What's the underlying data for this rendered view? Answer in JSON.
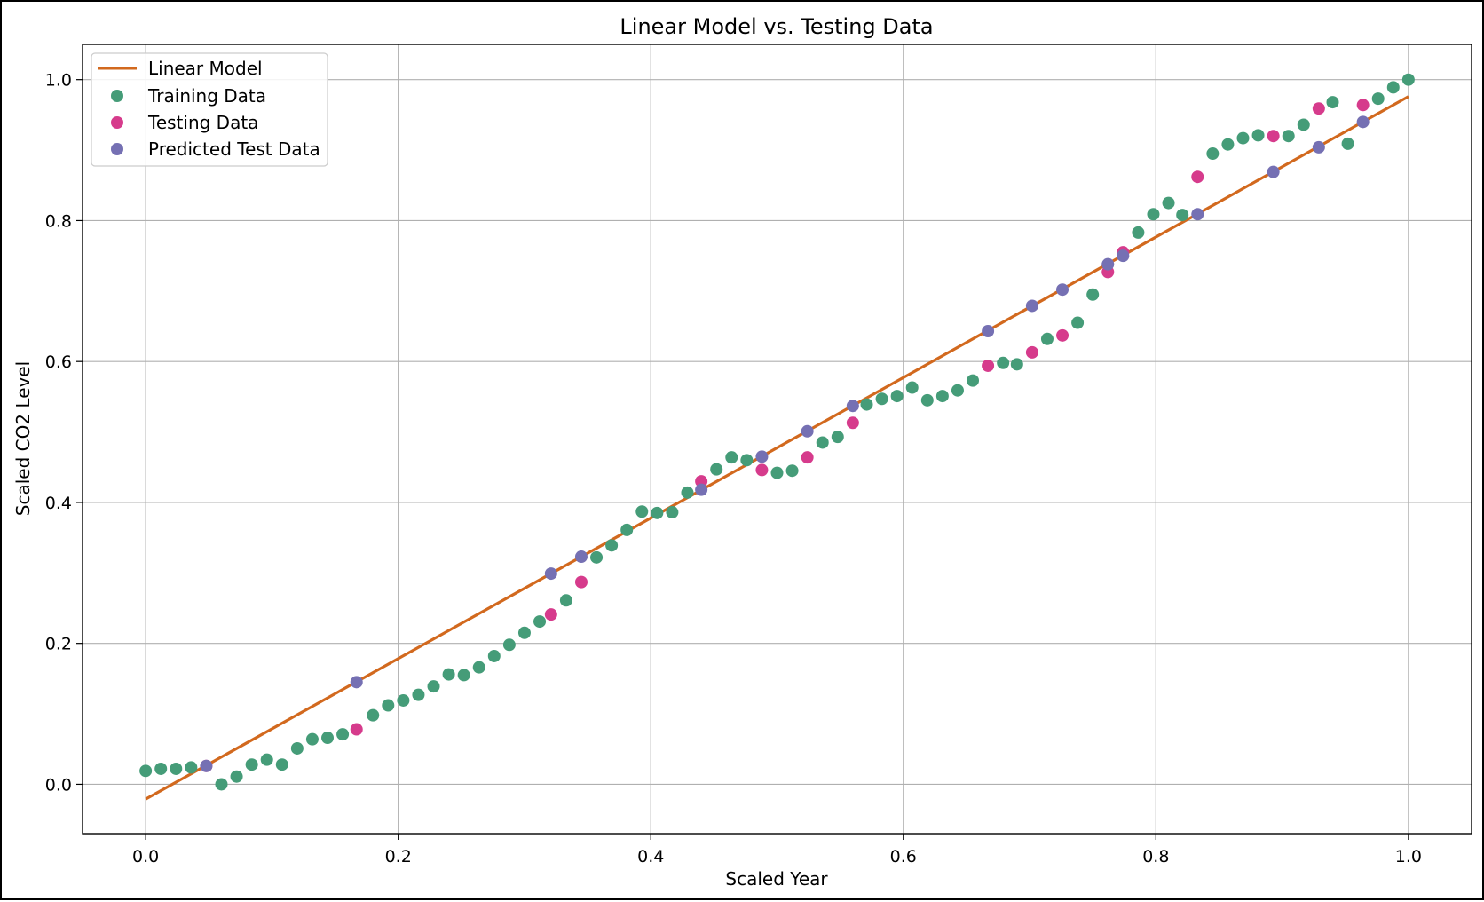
{
  "chart_data": {
    "type": "scatter",
    "title": "Linear Model vs. Testing Data",
    "xlabel": "Scaled Year",
    "ylabel": "Scaled CO2 Level",
    "xlim": [
      -0.05,
      1.05
    ],
    "ylim": [
      -0.07,
      1.05
    ],
    "xticks": [
      "0.0",
      "0.2",
      "0.4",
      "0.6",
      "0.8",
      "1.0"
    ],
    "yticks": [
      "0.0",
      "0.2",
      "0.4",
      "0.6",
      "0.8",
      "1.0"
    ],
    "grid": true,
    "legend_position": "top-left",
    "colors": {
      "line": "#d2691e",
      "training": "#459c78",
      "testing": "#d63b8c",
      "predicted": "#7570b3",
      "grid": "#b0b0b0",
      "legend_border": "#cccccc"
    },
    "legend": [
      "Linear Model",
      "Training Data",
      "Testing Data",
      "Predicted Test Data"
    ],
    "line": {
      "name": "Linear Model",
      "x": [
        0.0,
        1.0
      ],
      "y": [
        -0.021,
        0.976
      ]
    },
    "series": [
      {
        "name": "Training Data",
        "x": [
          0.0,
          0.012,
          0.024,
          0.036,
          0.06,
          0.072,
          0.084,
          0.096,
          0.108,
          0.12,
          0.132,
          0.144,
          0.156,
          0.18,
          0.192,
          0.204,
          0.216,
          0.228,
          0.24,
          0.252,
          0.264,
          0.276,
          0.288,
          0.3,
          0.312,
          0.333,
          0.357,
          0.369,
          0.381,
          0.393,
          0.405,
          0.417,
          0.429,
          0.452,
          0.464,
          0.476,
          0.5,
          0.512,
          0.536,
          0.548,
          0.571,
          0.583,
          0.595,
          0.607,
          0.619,
          0.631,
          0.643,
          0.655,
          0.679,
          0.69,
          0.714,
          0.738,
          0.75,
          0.786,
          0.798,
          0.81,
          0.821,
          0.845,
          0.857,
          0.869,
          0.881,
          0.905,
          0.917,
          0.94,
          0.952,
          0.976,
          0.988,
          1.0
        ],
        "y": [
          0.019,
          0.022,
          0.022,
          0.024,
          0.0,
          0.011,
          0.028,
          0.035,
          0.028,
          0.051,
          0.064,
          0.066,
          0.071,
          0.098,
          0.112,
          0.119,
          0.127,
          0.139,
          0.156,
          0.155,
          0.166,
          0.182,
          0.198,
          0.215,
          0.231,
          0.261,
          0.322,
          0.339,
          0.361,
          0.387,
          0.385,
          0.386,
          0.414,
          0.447,
          0.464,
          0.46,
          0.442,
          0.445,
          0.485,
          0.493,
          0.539,
          0.547,
          0.551,
          0.563,
          0.545,
          0.551,
          0.559,
          0.573,
          0.598,
          0.596,
          0.632,
          0.655,
          0.695,
          0.783,
          0.809,
          0.825,
          0.808,
          0.895,
          0.908,
          0.917,
          0.921,
          0.92,
          0.936,
          0.968,
          0.909,
          0.973,
          0.989,
          1.0
        ]
      },
      {
        "name": "Testing Data",
        "x": [
          0.048,
          0.167,
          0.321,
          0.345,
          0.44,
          0.488,
          0.524,
          0.56,
          0.667,
          0.702,
          0.726,
          0.762,
          0.774,
          0.833,
          0.893,
          0.929,
          0.964
        ],
        "y": [
          0.026,
          0.078,
          0.241,
          0.287,
          0.43,
          0.446,
          0.464,
          0.513,
          0.594,
          0.613,
          0.637,
          0.727,
          0.755,
          0.862,
          0.92,
          0.959,
          0.964
        ]
      },
      {
        "name": "Predicted Test Data",
        "x": [
          0.048,
          0.167,
          0.321,
          0.345,
          0.44,
          0.488,
          0.524,
          0.56,
          0.667,
          0.702,
          0.726,
          0.762,
          0.774,
          0.833,
          0.893,
          0.929,
          0.964
        ],
        "y": [
          0.026,
          0.145,
          0.299,
          0.323,
          0.418,
          0.465,
          0.501,
          0.537,
          0.643,
          0.679,
          0.702,
          0.738,
          0.75,
          0.809,
          0.869,
          0.904,
          0.94
        ]
      }
    ]
  }
}
